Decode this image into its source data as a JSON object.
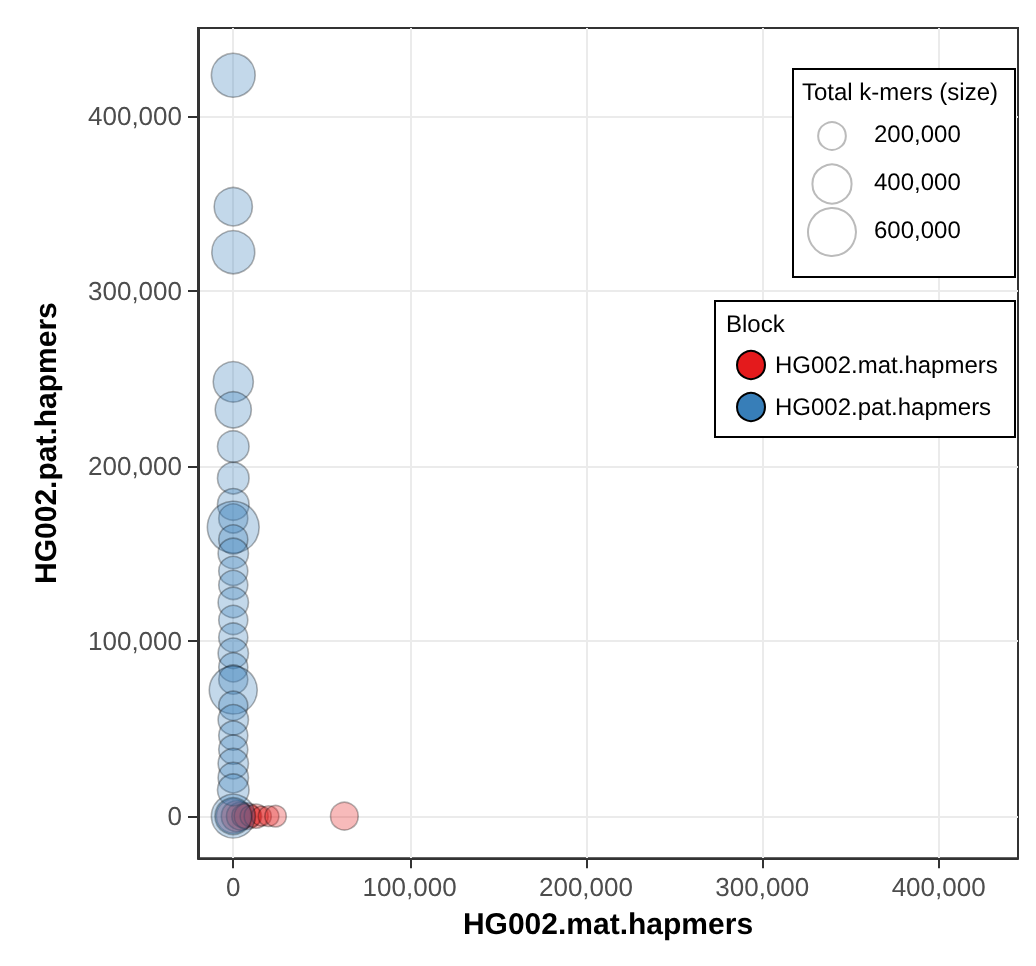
{
  "chart_data": {
    "type": "bubble",
    "xlabel": "HG002.mat.hapmers",
    "ylabel": "HG002.pat.hapmers",
    "legend_title": "Block",
    "annotations": [
      "Total k-mers (size)"
    ],
    "size_legend": [
      {
        "value": 200000,
        "label": "200,000"
      },
      {
        "value": 400000,
        "label": "400,000"
      },
      {
        "value": 600000,
        "label": "600,000"
      }
    ],
    "xlim": [
      -20000,
      445000
    ],
    "ylim": [
      -24000,
      450000
    ],
    "xticks": [
      0,
      {
        "value": 100000,
        "label": "100,000"
      },
      {
        "value": 200000,
        "label": "200,000"
      },
      {
        "value": 300000,
        "label": "300,000"
      },
      {
        "value": 400000,
        "label": "400,000"
      }
    ],
    "yticks": [
      0,
      {
        "value": 100000,
        "label": "100,000"
      },
      {
        "value": 200000,
        "label": "200,000"
      },
      {
        "value": 300000,
        "label": "300,000"
      },
      {
        "value": 400000,
        "label": "400,000"
      }
    ],
    "grid": true,
    "legend": "top right",
    "series": [
      {
        "name": "HG002.mat.hapmers",
        "color": "#e41a1c",
        "x": [
          0,
          2000,
          4000,
          6000,
          8000,
          10000,
          13000,
          16000,
          20000,
          24000,
          63000
        ],
        "values": [
          0,
          0,
          0,
          0,
          0,
          0,
          0,
          0,
          0,
          0,
          0
        ],
        "sizes": [
          300000,
          250000,
          200000,
          150000,
          180000,
          120000,
          150000,
          100000,
          110000,
          120000,
          200000
        ]
      },
      {
        "name": "HG002.pat.hapmers",
        "color": "#377eb8",
        "x": [
          0,
          0,
          0,
          0,
          0,
          0,
          0,
          0,
          0,
          0,
          0,
          0,
          0,
          0,
          0,
          0,
          0,
          0,
          0,
          0,
          0,
          0,
          0,
          0,
          0,
          0,
          0,
          0,
          0,
          0
        ],
        "values": [
          423000,
          348000,
          322000,
          248000,
          232000,
          211000,
          193000,
          178000,
          170000,
          165000,
          158000,
          150000,
          140000,
          132000,
          122000,
          112000,
          102000,
          93000,
          85000,
          78000,
          72000,
          63000,
          55000,
          46000,
          38000,
          30000,
          22000,
          15000,
          0,
          0
        ],
        "sizes": [
          500000,
          380000,
          480000,
          420000,
          340000,
          260000,
          260000,
          260000,
          220000,
          700000,
          220000,
          240000,
          220000,
          220000,
          240000,
          220000,
          220000,
          240000,
          220000,
          220000,
          600000,
          220000,
          240000,
          220000,
          220000,
          240000,
          240000,
          260000,
          500000,
          350000
        ]
      }
    ]
  }
}
